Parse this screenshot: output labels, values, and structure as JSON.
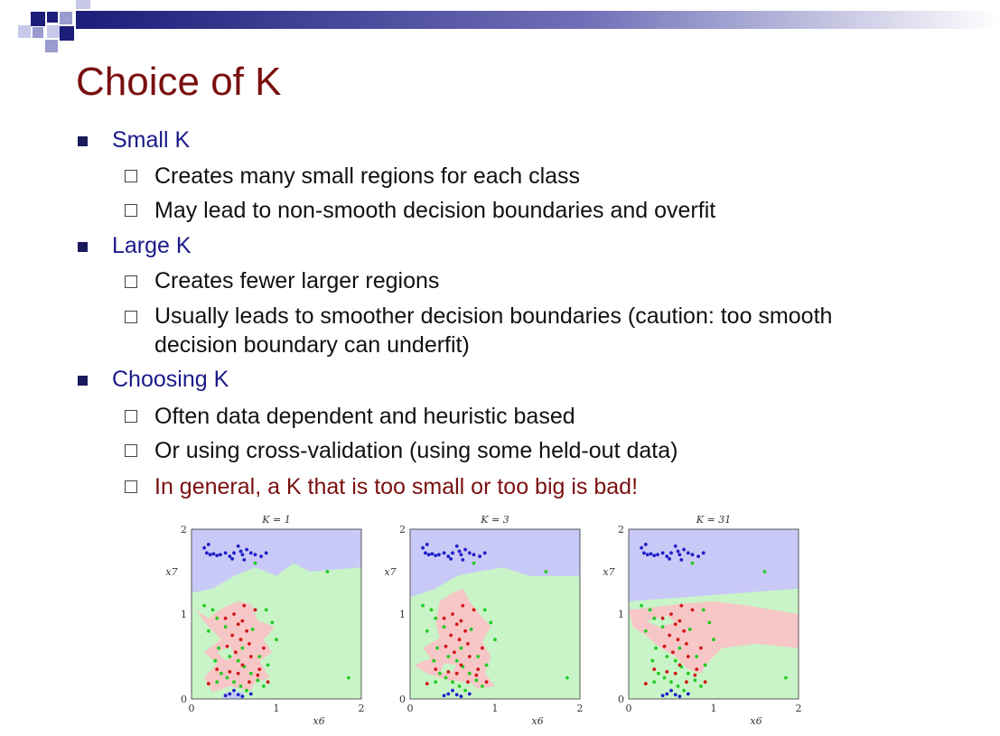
{
  "slide": {
    "title": "Choice of K",
    "sections": [
      {
        "heading": "Small K",
        "items": [
          {
            "text": "Creates many small regions for each class"
          },
          {
            "text": "May lead to non-smooth decision boundaries and overfit"
          }
        ]
      },
      {
        "heading": "Large K",
        "items": [
          {
            "text": "Creates fewer larger regions"
          },
          {
            "text": "Usually leads to smoother decision boundaries (caution: too smooth",
            "cont": "decision boundary can underfit)"
          }
        ]
      },
      {
        "heading": "Choosing K",
        "items": [
          {
            "text": "Often data dependent and heuristic based"
          },
          {
            "text": "Or using cross-validation (using some held-out data)"
          },
          {
            "text": "In general, a K that is too small or too big is bad!",
            "highlight": true
          }
        ]
      }
    ]
  },
  "colors": {
    "title": "#7a0f0f",
    "heading": "#1a1a8a",
    "region_blue": "#c9c9f7",
    "region_green": "#c8f4c8",
    "region_red": "#f7c6c6",
    "point_blue": "#1f1fc8",
    "point_green": "#22cc22",
    "point_red": "#d01818"
  },
  "chart_data": [
    {
      "type": "scatter",
      "title": "K = 1",
      "xlabel": "x6",
      "ylabel": "x7",
      "xlim": [
        0,
        2
      ],
      "ylim": [
        0,
        2
      ],
      "xticks": [
        "0",
        "1",
        "2"
      ],
      "yticks": [
        "0",
        "1",
        "2"
      ]
    },
    {
      "type": "scatter",
      "title": "K = 3",
      "xlabel": "x6",
      "ylabel": "x7",
      "xlim": [
        0,
        2
      ],
      "ylim": [
        0,
        2
      ],
      "xticks": [
        "0",
        "1",
        "2"
      ],
      "yticks": [
        "0",
        "1",
        "2"
      ]
    },
    {
      "type": "scatter",
      "title": "K = 31",
      "xlabel": "x6",
      "ylabel": "x7",
      "xlim": [
        0,
        2
      ],
      "ylim": [
        0,
        2
      ],
      "xticks": [
        "0",
        "1",
        "2"
      ],
      "yticks": [
        "0",
        "1",
        "2"
      ]
    }
  ],
  "points": {
    "blue": [
      [
        0.15,
        1.78
      ],
      [
        0.18,
        1.72
      ],
      [
        0.22,
        1.7
      ],
      [
        0.26,
        1.71
      ],
      [
        0.3,
        1.69
      ],
      [
        0.34,
        1.7
      ],
      [
        0.4,
        1.72
      ],
      [
        0.45,
        1.68
      ],
      [
        0.5,
        1.72
      ],
      [
        0.55,
        1.8
      ],
      [
        0.58,
        1.74
      ],
      [
        0.6,
        1.7
      ],
      [
        0.65,
        1.76
      ],
      [
        0.7,
        1.72
      ],
      [
        0.75,
        1.7
      ],
      [
        0.82,
        1.68
      ],
      [
        0.88,
        1.72
      ],
      [
        0.2,
        1.82
      ],
      [
        0.48,
        1.65
      ],
      [
        0.62,
        1.64
      ],
      [
        0.4,
        0.04
      ],
      [
        0.45,
        0.06
      ],
      [
        0.55,
        0.05
      ],
      [
        0.6,
        0.03
      ],
      [
        0.7,
        0.06
      ],
      [
        0.5,
        0.1
      ]
    ],
    "green": [
      [
        0.15,
        1.1
      ],
      [
        0.25,
        1.05
      ],
      [
        0.3,
        0.95
      ],
      [
        0.4,
        0.85
      ],
      [
        0.2,
        0.8
      ],
      [
        0.32,
        0.6
      ],
      [
        0.45,
        0.5
      ],
      [
        0.55,
        0.45
      ],
      [
        0.62,
        0.38
      ],
      [
        0.7,
        0.3
      ],
      [
        0.78,
        0.22
      ],
      [
        0.85,
        0.15
      ],
      [
        0.35,
        0.3
      ],
      [
        0.42,
        0.25
      ],
      [
        0.5,
        0.2
      ],
      [
        0.28,
        0.45
      ],
      [
        0.6,
        0.6
      ],
      [
        0.8,
        0.5
      ],
      [
        0.9,
        0.4
      ],
      [
        1.0,
        0.7
      ],
      [
        0.95,
        0.9
      ],
      [
        1.85,
        0.25
      ],
      [
        0.72,
        0.82
      ],
      [
        0.88,
        1.05
      ],
      [
        0.58,
        0.15
      ],
      [
        0.65,
        0.1
      ],
      [
        0.3,
        0.2
      ],
      [
        1.6,
        1.5
      ],
      [
        0.75,
        1.6
      ]
    ],
    "red": [
      [
        0.4,
        0.95
      ],
      [
        0.5,
        1.0
      ],
      [
        0.55,
        0.88
      ],
      [
        0.6,
        0.92
      ],
      [
        0.65,
        0.8
      ],
      [
        0.48,
        0.75
      ],
      [
        0.58,
        0.7
      ],
      [
        0.68,
        0.65
      ],
      [
        0.42,
        0.62
      ],
      [
        0.52,
        0.55
      ],
      [
        0.7,
        0.5
      ],
      [
        0.6,
        0.4
      ],
      [
        0.8,
        0.35
      ],
      [
        0.85,
        0.6
      ],
      [
        0.75,
        1.05
      ],
      [
        0.62,
        1.1
      ],
      [
        0.3,
        0.35
      ],
      [
        0.45,
        0.32
      ],
      [
        0.78,
        0.28
      ],
      [
        0.9,
        0.2
      ],
      [
        0.2,
        0.18
      ],
      [
        0.55,
        0.3
      ],
      [
        0.68,
        0.2
      ]
    ]
  }
}
